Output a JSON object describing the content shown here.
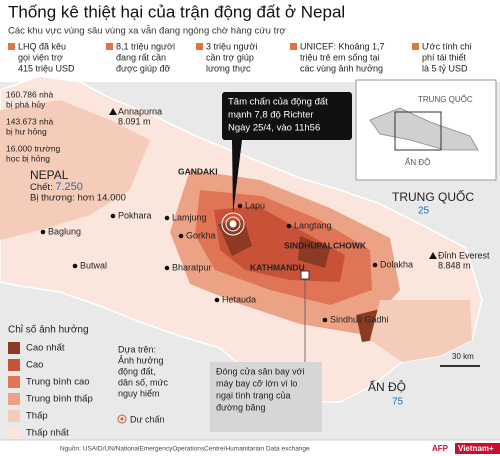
{
  "header": {
    "title": "Thống kê thiệt hại của trận động đất ở Nepal",
    "subtitle": "Các khu vực vùng sâu vùng xa vẫn đang ngóng chờ hàng cứu trợ"
  },
  "stats": [
    [
      "LHQ đã kêu",
      "gọi viện trợ",
      "415 triệu USD"
    ],
    [
      "8,1 triệu người",
      "đang rất cần",
      "được giúp đỡ"
    ],
    [
      "3 triệu người",
      "cần trợ giúp",
      "lương thực"
    ],
    [
      "UNICEF: Khoảng 1,7",
      "triệu trẻ em sống tại",
      "các vùng ảnh hưởng"
    ],
    [
      "Ước tính chi",
      "phí tái thiết",
      "là 5 tỷ USD"
    ]
  ],
  "damage": [
    [
      "160.786 nhà",
      "bị phá hủy"
    ],
    [
      "143.673 nhà",
      "bị hư hỏng"
    ],
    [
      "16.000 trường",
      "học bị hỏng"
    ]
  ],
  "nepal": {
    "name": "NEPAL",
    "deaths_label": "Chết: ",
    "deaths_value": "7.250",
    "injured": "Bị thương: hơn 14.000"
  },
  "places": [
    [
      "Annapurna",
      "8.091 m"
    ],
    [
      "GANDAKI"
    ],
    [
      "Pokhara"
    ],
    [
      "Baglung"
    ],
    [
      "Lamjung"
    ],
    [
      "Gorkha"
    ],
    [
      "Lapu"
    ],
    [
      "Langtang"
    ],
    [
      "SINDHUPALCHOWK"
    ],
    [
      "KATHMANDU"
    ],
    [
      "Dolakha"
    ],
    [
      "Butwal"
    ],
    [
      "Bharatpur"
    ],
    [
      "Hetauda"
    ],
    [
      "Sindhuli Gadhi"
    ],
    [
      "Đỉnh Everest",
      "8.848 m"
    ]
  ],
  "china": {
    "name": "TRUNG QUỐC",
    "number": "25"
  },
  "india": {
    "name": "ẤN ĐỘ",
    "number": "75"
  },
  "epicenter": [
    "Tâm chấn của động đất",
    "mạnh 7,8 độ Richter",
    "Ngày 25/4, vào 11h56"
  ],
  "airport": [
    "Đóng cửa sân bay với",
    "máy bay cỡ lớn vì lo",
    "ngại tình trạng của",
    "đường băng"
  ],
  "inset": {
    "china": "TRUNG QUỐC",
    "india": "ẤN ĐỘ"
  },
  "legend": {
    "title": "Chỉ số ảnh hưởng",
    "levels": [
      {
        "label": "Cao nhất",
        "color": "#8c3b22"
      },
      {
        "label": "Cao",
        "color": "#c75237"
      },
      {
        "label": "Trung bình cao",
        "color": "#df7556"
      },
      {
        "label": "Trung bình thấp",
        "color": "#eca285"
      },
      {
        "label": "Thấp",
        "color": "#f5cbb9"
      },
      {
        "label": "Thấp nhất",
        "color": "#fbe6dd"
      }
    ],
    "basis": [
      "Dựa trên:",
      "Ảnh hưởng",
      "động đất,",
      "dân số, mức",
      "nguy hiểm"
    ],
    "aftershock": "Dư chấn"
  },
  "scale": "30 km",
  "source": "Nguồn: USAID/UN/NationalEmergencyOperationsCentre/Humanitarian Data exchange",
  "logos": [
    "AFP",
    "Vietnam+"
  ]
}
